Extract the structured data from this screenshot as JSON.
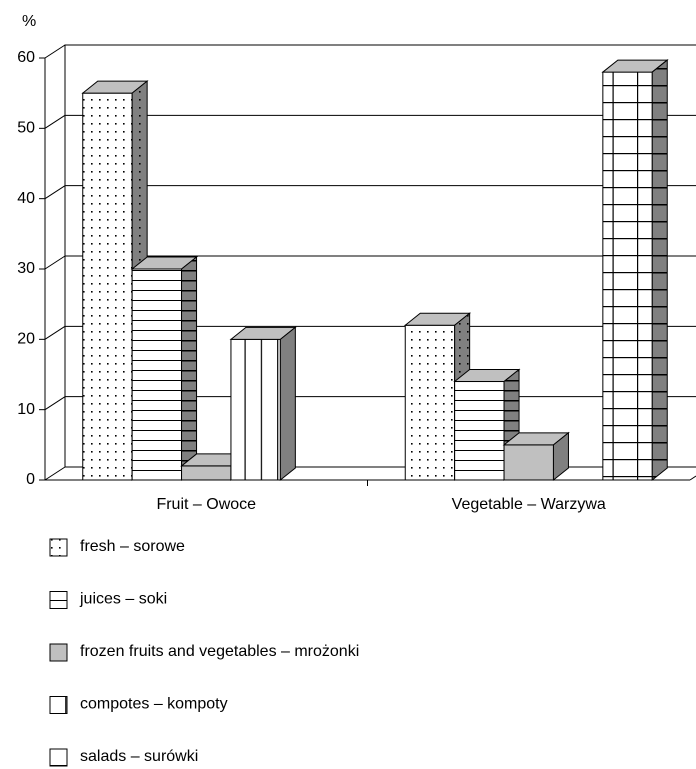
{
  "chart_data": {
    "type": "bar3d",
    "y_label": "%",
    "categories": [
      "Fruit – Owoce",
      "Vegetable – Warzywa"
    ],
    "series": [
      {
        "name": "fresh –  sorowe",
        "color": "#ffffff",
        "pattern": "dots",
        "values": [
          55,
          22
        ]
      },
      {
        "name": "juices –  soki",
        "color": "#ffffff",
        "pattern": "hlines",
        "values": [
          30,
          14
        ]
      },
      {
        "name": "frozen fruits and vegetables –  mrożonki",
        "color": "#c0c0c0",
        "pattern": "solid",
        "values": [
          2,
          5
        ]
      },
      {
        "name": "compotes – kompoty",
        "color": "#ffffff",
        "pattern": "vlines",
        "values": [
          20,
          null
        ]
      },
      {
        "name": "salads – surówki",
        "color": "#ffffff",
        "pattern": "grid",
        "values": [
          null,
          58
        ]
      }
    ],
    "ylim": [
      0,
      60
    ],
    "yticks": [
      0,
      10,
      20,
      30,
      40,
      50,
      60
    ],
    "grid": true
  }
}
